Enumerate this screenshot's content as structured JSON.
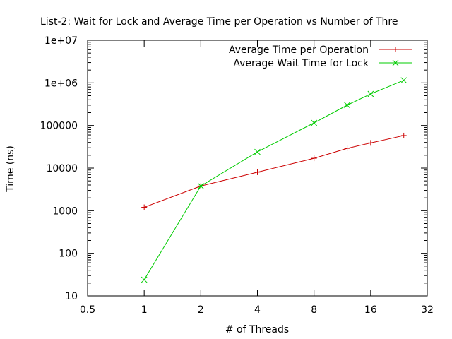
{
  "chart_data": {
    "type": "line",
    "title": "List-2: Wait for Lock and Average Time per Operation vs Number of Thre",
    "xlabel": "# of Threads",
    "ylabel": "Time (ns)",
    "x_scale": "log2",
    "y_scale": "log10",
    "xlim": [
      0.5,
      32
    ],
    "ylim": [
      10,
      10000000
    ],
    "x_ticks": [
      {
        "value": 0.5,
        "label": "0.5"
      },
      {
        "value": 1,
        "label": "1"
      },
      {
        "value": 2,
        "label": "2"
      },
      {
        "value": 4,
        "label": "4"
      },
      {
        "value": 8,
        "label": "8"
      },
      {
        "value": 16,
        "label": "16"
      },
      {
        "value": 32,
        "label": "32"
      }
    ],
    "y_ticks": [
      {
        "value": 10,
        "label": "10"
      },
      {
        "value": 100,
        "label": "100"
      },
      {
        "value": 1000,
        "label": "1000"
      },
      {
        "value": 10000,
        "label": "10000"
      },
      {
        "value": 100000,
        "label": "100000"
      },
      {
        "value": 1000000,
        "label": "1e+06"
      },
      {
        "value": 10000000,
        "label": "1e+07"
      }
    ],
    "legend_position": "top-right",
    "grid": false,
    "series": [
      {
        "name": "Average Time per Operation",
        "color": "#cc0000",
        "marker": "plus",
        "x": [
          1,
          2,
          4,
          8,
          12,
          16,
          24
        ],
        "y": [
          1200,
          3800,
          8000,
          17000,
          29000,
          39000,
          58000
        ]
      },
      {
        "name": "Average Wait Time for Lock",
        "color": "#00cc00",
        "marker": "cross",
        "x": [
          1,
          2,
          4,
          8,
          12,
          16,
          24
        ],
        "y": [
          24,
          3800,
          24000,
          115000,
          300000,
          550000,
          1150000
        ]
      }
    ]
  }
}
